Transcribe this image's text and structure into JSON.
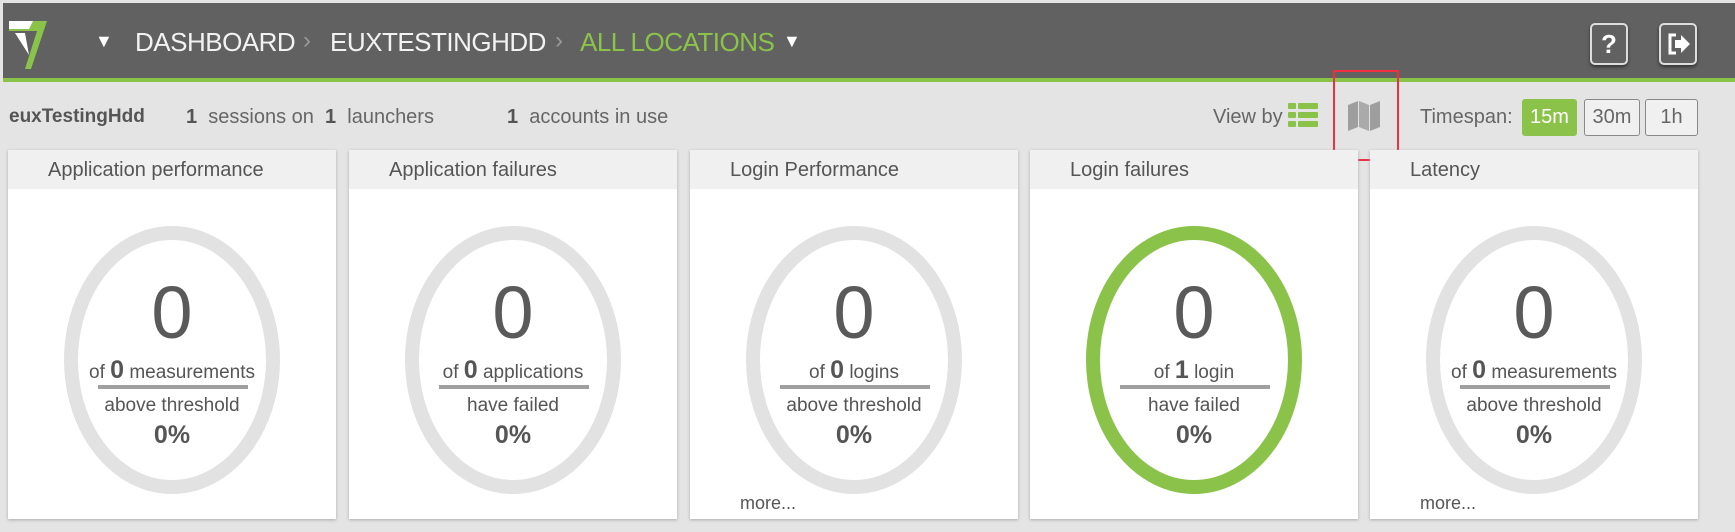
{
  "header": {
    "breadcrumbs": [
      "DASHBOARD",
      "EUXTESTINGHDD",
      "ALL LOCATIONS"
    ],
    "help_label": "?",
    "accent": "#8bc34a"
  },
  "info": {
    "name": "euxTestingHdd",
    "sessions": "1",
    "sessions_label": "sessions on",
    "launchers": "1",
    "launchers_label": "launchers",
    "accounts": "1",
    "accounts_label": "accounts in use"
  },
  "view": {
    "label": "View by",
    "options": [
      "list-icon",
      "map-icon"
    ]
  },
  "timespan": {
    "label": "Timespan:",
    "options": [
      "15m",
      "30m",
      "1h"
    ],
    "selected": "15m"
  },
  "cards": [
    {
      "title": "Application performance",
      "value": "0",
      "of": "of",
      "total": "0",
      "unit": "measurements",
      "sub": "above threshold",
      "pct": "0%",
      "ring": "#e2e2e2",
      "more": ""
    },
    {
      "title": "Application failures",
      "value": "0",
      "of": "of",
      "total": "0",
      "unit": "applications",
      "sub": "have failed",
      "pct": "0%",
      "ring": "#e2e2e2",
      "more": ""
    },
    {
      "title": "Login Performance",
      "value": "0",
      "of": "of",
      "total": "0",
      "unit": "logins",
      "sub": "above threshold",
      "pct": "0%",
      "ring": "#e2e2e2",
      "more": "more..."
    },
    {
      "title": "Login failures",
      "value": "0",
      "of": "of",
      "total": "1",
      "unit": "login",
      "sub": "have failed",
      "pct": "0%",
      "ring": "#8bc34a",
      "more": ""
    },
    {
      "title": "Latency",
      "value": "0",
      "of": "of",
      "total": "0",
      "unit": "measurements",
      "sub": "above threshold",
      "pct": "0%",
      "ring": "#e2e2e2",
      "more": "more..."
    }
  ]
}
